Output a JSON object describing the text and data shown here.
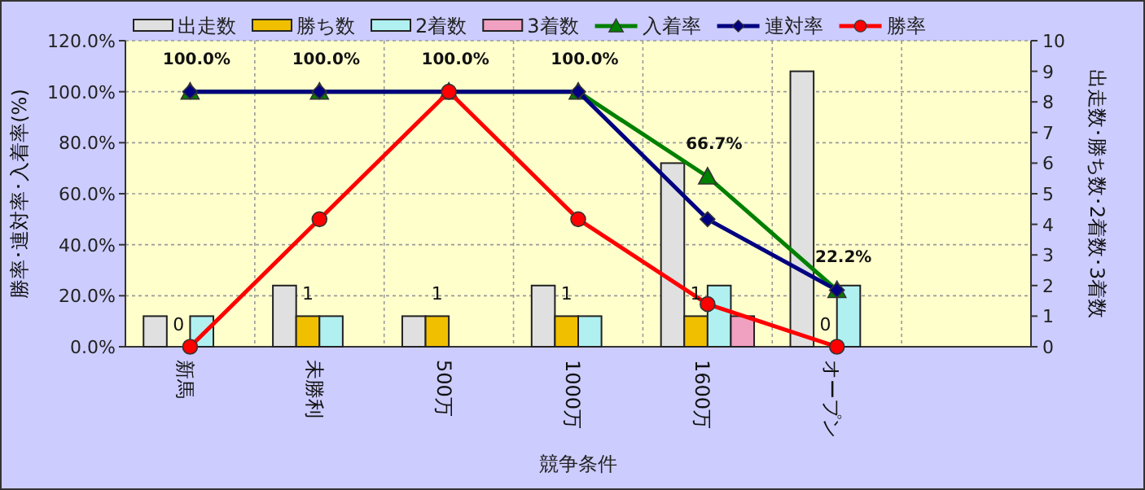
{
  "chart_data": {
    "type": "bar",
    "xlabel": "競争条件",
    "ylabel": "勝率･連対率･入着率(%)",
    "y2label": "出走数･勝ち数･2着数･3着数",
    "categories": [
      "新馬",
      "未勝利",
      "500万",
      "1000万",
      "1600万",
      "オープン",
      null
    ],
    "series": [
      {
        "name": "出走数",
        "axis": "y2",
        "color": "#e0e0e0",
        "values": [
          1,
          2,
          1,
          2,
          6,
          9,
          null
        ]
      },
      {
        "name": "勝ち数",
        "axis": "y2",
        "color": "#f0c000",
        "values": [
          0,
          1,
          1,
          1,
          1,
          0,
          null
        ],
        "value_labels": [
          "0",
          "1",
          "1",
          "1",
          "1",
          "0",
          null
        ]
      },
      {
        "name": "2着数",
        "axis": "y2",
        "color": "#b0f0f0",
        "values": [
          1,
          1,
          0,
          1,
          2,
          2,
          null
        ]
      },
      {
        "name": "3着数",
        "axis": "y2",
        "color": "#f0a0c0",
        "values": [
          0,
          0,
          0,
          0,
          1,
          0,
          null
        ]
      },
      {
        "name": "入着率",
        "type": "line",
        "marker": "triangle",
        "color": "#008000",
        "values": [
          100,
          100,
          100,
          100,
          66.7,
          22.2,
          null
        ],
        "value_labels": [
          "100.0%",
          "100.0%",
          "100.0%",
          "100.0%",
          "66.7%",
          "22.2%",
          null
        ]
      },
      {
        "name": "連対率",
        "type": "line",
        "marker": "diamond",
        "color": "#000080",
        "values": [
          100,
          100,
          100,
          100,
          50,
          22.2,
          null
        ]
      },
      {
        "name": "勝率",
        "type": "line",
        "marker": "circle",
        "color": "#ff0000",
        "values": [
          0,
          50,
          100,
          50,
          16.7,
          0,
          null
        ]
      }
    ],
    "ylim": [
      0,
      120
    ],
    "yticks": [
      {
        "value": 0,
        "label": "0.0%"
      },
      {
        "value": 20,
        "label": "20.0%"
      },
      {
        "value": 40,
        "label": "40.0%"
      },
      {
        "value": 60,
        "label": "60.0%"
      },
      {
        "value": 80,
        "label": "80.0%"
      },
      {
        "value": 100,
        "label": "100.0%"
      },
      {
        "value": 120,
        "label": "120.0%"
      }
    ],
    "y2lim": [
      0,
      10
    ],
    "y2ticks": [
      0,
      1,
      2,
      3,
      4,
      5,
      6,
      7,
      8,
      9,
      10
    ],
    "grid": true,
    "legend": "top"
  }
}
